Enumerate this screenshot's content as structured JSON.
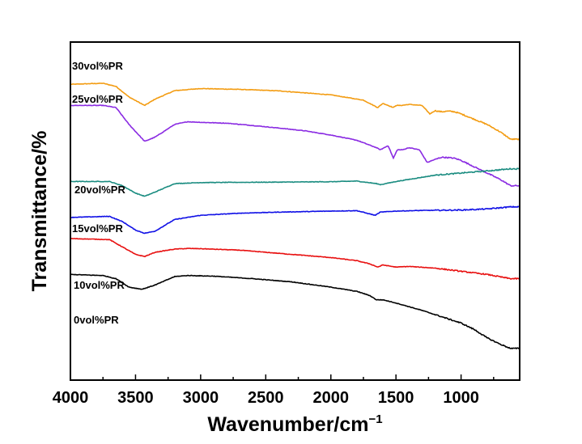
{
  "chart_data": {
    "type": "line",
    "xlabel": "Wavenumber/cm",
    "xlabel_sup": "−1",
    "ylabel": "Transmittance/%",
    "xlim": [
      4000,
      550
    ],
    "x_reversed": true,
    "x_ticks": [
      4000,
      3500,
      3000,
      2500,
      2000,
      1500,
      1000
    ],
    "y_tick_labels": false,
    "grid": false,
    "legend": "inline labels",
    "series": [
      {
        "name": "30vol%PR",
        "color": "#f39c12",
        "points": [
          [
            4000,
            90
          ],
          [
            3750,
            90.5
          ],
          [
            3650,
            89
          ],
          [
            3550,
            84
          ],
          [
            3430,
            80
          ],
          [
            3350,
            83
          ],
          [
            3200,
            87
          ],
          [
            3000,
            88
          ],
          [
            2700,
            87.6
          ],
          [
            2400,
            86.9
          ],
          [
            2000,
            85
          ],
          [
            1750,
            82.5
          ],
          [
            1640,
            79
          ],
          [
            1600,
            81
          ],
          [
            1520,
            79
          ],
          [
            1500,
            80
          ],
          [
            1460,
            80
          ],
          [
            1400,
            80.5
          ],
          [
            1300,
            80
          ],
          [
            1240,
            76
          ],
          [
            1200,
            77.5
          ],
          [
            1150,
            77
          ],
          [
            1100,
            77.3
          ],
          [
            1050,
            77
          ],
          [
            1000,
            76
          ],
          [
            900,
            73.5
          ],
          [
            800,
            71
          ],
          [
            700,
            67.5
          ],
          [
            620,
            64
          ]
        ]
      },
      {
        "name": "25vol%PR",
        "color": "#8a2be2",
        "points": [
          [
            4000,
            80
          ],
          [
            3750,
            80
          ],
          [
            3650,
            79
          ],
          [
            3550,
            71
          ],
          [
            3430,
            63
          ],
          [
            3350,
            65
          ],
          [
            3200,
            71
          ],
          [
            3100,
            72.3
          ],
          [
            3000,
            72
          ],
          [
            2800,
            71.6
          ],
          [
            2600,
            70.5
          ],
          [
            2400,
            69.3
          ],
          [
            2200,
            68
          ],
          [
            2000,
            66
          ],
          [
            1800,
            63.5
          ],
          [
            1650,
            60
          ],
          [
            1620,
            59
          ],
          [
            1560,
            61
          ],
          [
            1520,
            55
          ],
          [
            1490,
            59
          ],
          [
            1450,
            59
          ],
          [
            1400,
            60
          ],
          [
            1320,
            59
          ],
          [
            1260,
            53
          ],
          [
            1220,
            54
          ],
          [
            1150,
            55.5
          ],
          [
            1100,
            55.3
          ],
          [
            1050,
            55
          ],
          [
            1000,
            54
          ],
          [
            900,
            51
          ],
          [
            800,
            48
          ],
          [
            700,
            45
          ],
          [
            620,
            42
          ]
        ]
      },
      {
        "name": "20vol%PR",
        "color": "#1a8c80",
        "points": [
          [
            4000,
            44
          ],
          [
            3700,
            44
          ],
          [
            3600,
            42
          ],
          [
            3500,
            38.5
          ],
          [
            3430,
            37
          ],
          [
            3350,
            39
          ],
          [
            3200,
            43
          ],
          [
            3000,
            43.5
          ],
          [
            2700,
            43.6
          ],
          [
            2400,
            43.7
          ],
          [
            2000,
            43.9
          ],
          [
            1800,
            44.2
          ],
          [
            1650,
            43
          ],
          [
            1620,
            42.5
          ],
          [
            1500,
            44
          ],
          [
            1400,
            45
          ],
          [
            1300,
            46
          ],
          [
            1200,
            47
          ],
          [
            1000,
            48
          ],
          [
            800,
            49
          ],
          [
            620,
            50
          ]
        ]
      },
      {
        "name": "15vol%PR",
        "color": "#1010e6",
        "points": [
          [
            4000,
            27
          ],
          [
            3700,
            27.5
          ],
          [
            3600,
            25
          ],
          [
            3500,
            21
          ],
          [
            3430,
            19.5
          ],
          [
            3350,
            20.5
          ],
          [
            3200,
            26
          ],
          [
            3000,
            28
          ],
          [
            2700,
            29
          ],
          [
            2400,
            29.5
          ],
          [
            2000,
            30
          ],
          [
            1800,
            30.2
          ],
          [
            1660,
            28
          ],
          [
            1620,
            29.5
          ],
          [
            1500,
            30
          ],
          [
            1300,
            30.3
          ],
          [
            1000,
            30.5
          ],
          [
            800,
            31
          ],
          [
            620,
            32
          ]
        ]
      },
      {
        "name": "10vol%PR",
        "color": "#e81010",
        "points": [
          [
            4000,
            17
          ],
          [
            3700,
            16.5
          ],
          [
            3600,
            13
          ],
          [
            3500,
            9.5
          ],
          [
            3430,
            8.5
          ],
          [
            3350,
            10.5
          ],
          [
            3200,
            12
          ],
          [
            3100,
            12.3
          ],
          [
            3000,
            12.2
          ],
          [
            2700,
            11.5
          ],
          [
            2400,
            10
          ],
          [
            2000,
            8
          ],
          [
            1800,
            6.5
          ],
          [
            1700,
            5
          ],
          [
            1640,
            3.5
          ],
          [
            1600,
            4.5
          ],
          [
            1500,
            3.5
          ],
          [
            1400,
            3.8
          ],
          [
            1200,
            3
          ],
          [
            1000,
            1.5
          ],
          [
            800,
            0
          ],
          [
            620,
            -2
          ]
        ]
      },
      {
        "name": "0vol%PR",
        "color": "#000000",
        "points": [
          [
            4000,
            0
          ],
          [
            3750,
            -0.5
          ],
          [
            3650,
            -2
          ],
          [
            3550,
            -6
          ],
          [
            3450,
            -7
          ],
          [
            3350,
            -5
          ],
          [
            3200,
            -1
          ],
          [
            3100,
            -0.5
          ],
          [
            2900,
            -0.8
          ],
          [
            2600,
            -2
          ],
          [
            2300,
            -3.5
          ],
          [
            2000,
            -6
          ],
          [
            1800,
            -8
          ],
          [
            1700,
            -10
          ],
          [
            1650,
            -12
          ],
          [
            1600,
            -12
          ],
          [
            1500,
            -13.5
          ],
          [
            1300,
            -17
          ],
          [
            1100,
            -21
          ],
          [
            1000,
            -23
          ],
          [
            900,
            -26
          ],
          [
            800,
            -30
          ],
          [
            700,
            -33
          ],
          [
            620,
            -35
          ]
        ]
      }
    ]
  }
}
